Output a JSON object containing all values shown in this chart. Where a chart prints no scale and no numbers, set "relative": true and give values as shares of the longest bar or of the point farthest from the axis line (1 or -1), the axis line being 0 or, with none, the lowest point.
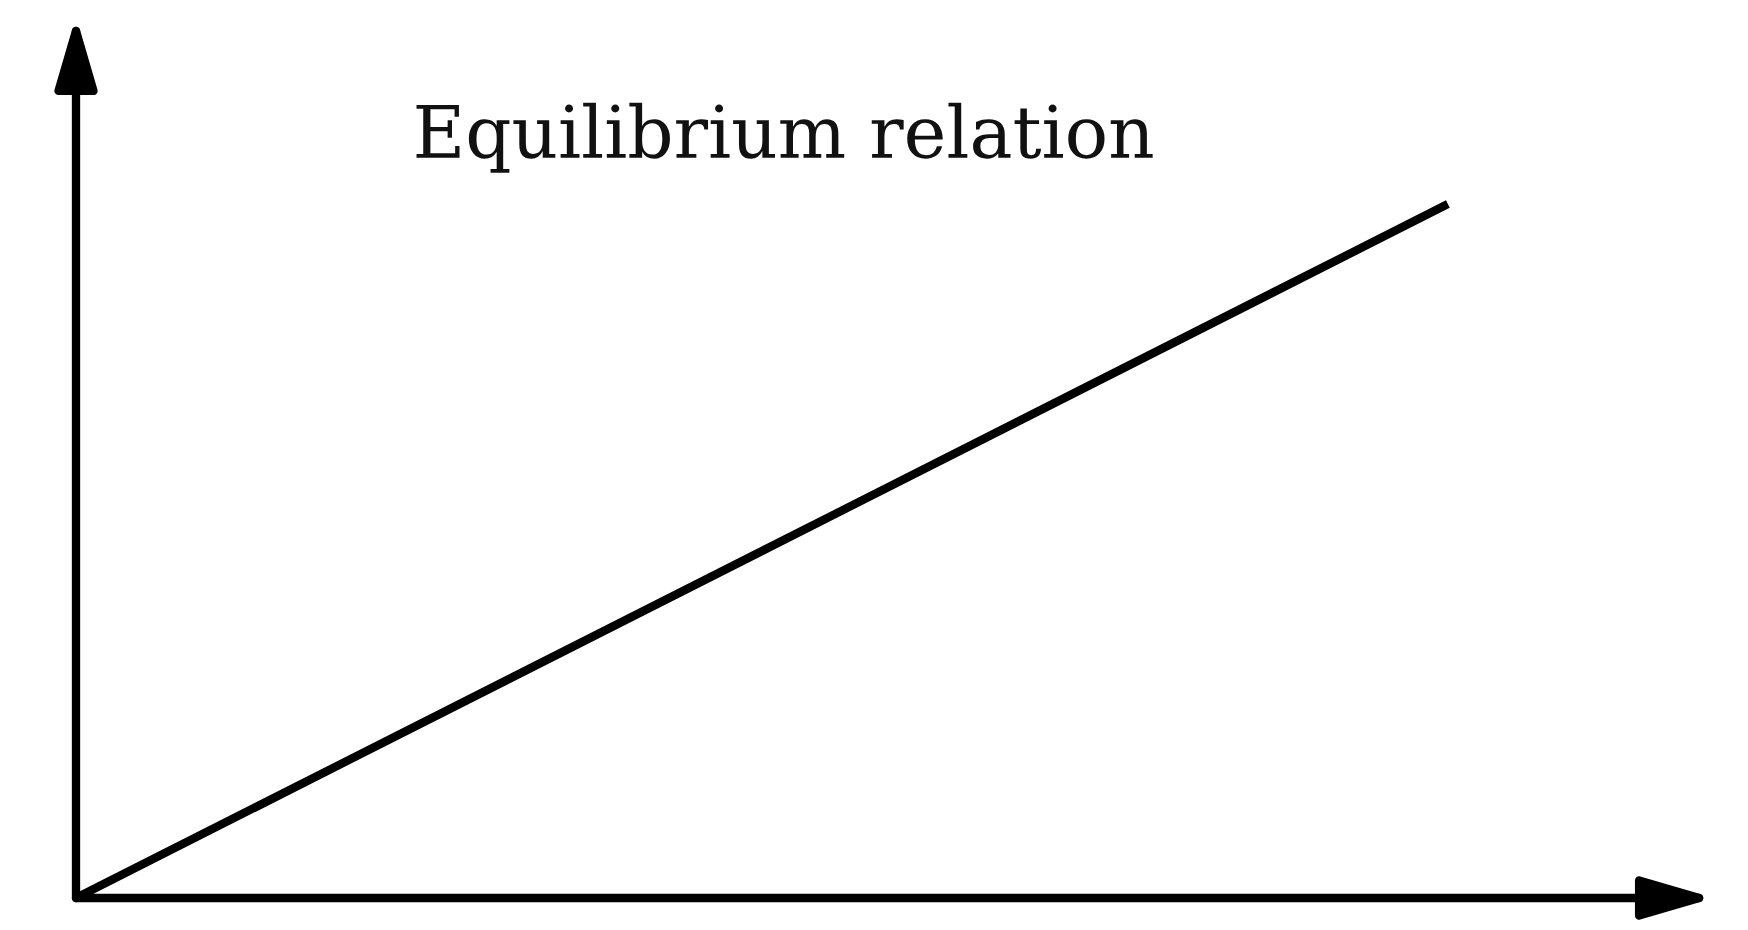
{
  "chart_data": {
    "type": "line",
    "relative": true,
    "categories": [
      null,
      null
    ],
    "series": [
      {
        "name": "Equilibrium relation",
        "color": "#000000",
        "values": [
          0,
          1
        ]
      }
    ]
  }
}
